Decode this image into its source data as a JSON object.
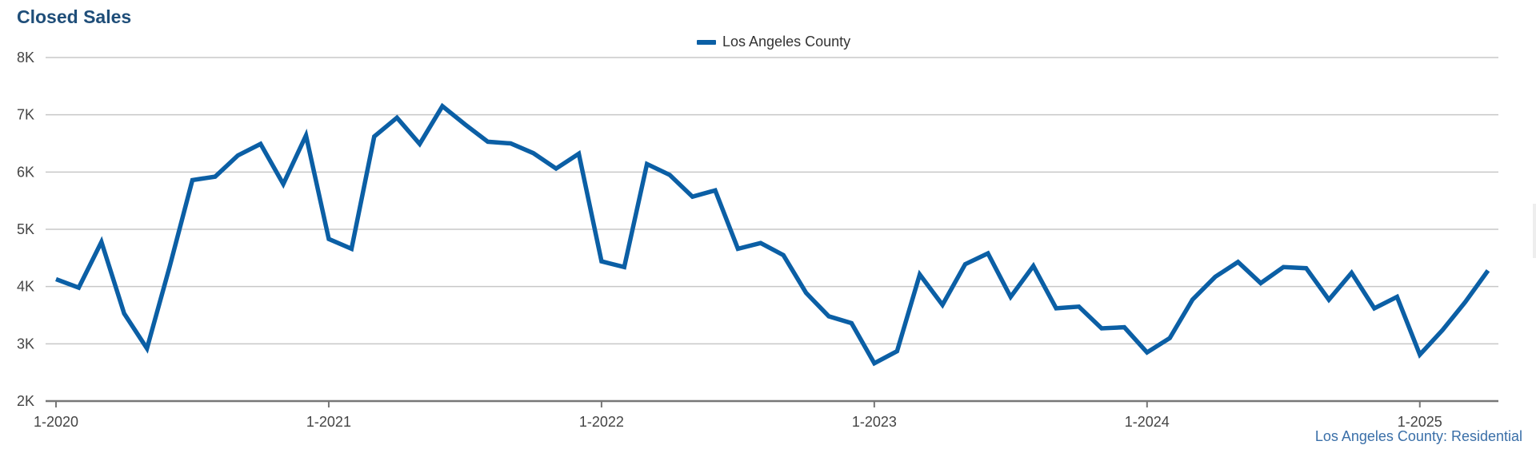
{
  "chart_data": {
    "type": "line",
    "title": "Closed Sales",
    "xlabel": "",
    "ylabel": "",
    "ylim": [
      2000,
      8000
    ],
    "y_ticks": [
      2000,
      3000,
      4000,
      5000,
      6000,
      7000,
      8000
    ],
    "y_tick_labels": [
      "2K",
      "3K",
      "4K",
      "5K",
      "6K",
      "7K",
      "8K"
    ],
    "x_tick_labels": [
      "1-2020",
      "1-2021",
      "1-2022",
      "1-2023",
      "1-2024",
      "1-2025"
    ],
    "grid": true,
    "legend_position": "top-center",
    "source_note": "Los Angeles County: Residential",
    "series": [
      {
        "name": "Los Angeles County",
        "color": "#0b5fa5",
        "x": [
          "1-2020",
          "2-2020",
          "3-2020",
          "4-2020",
          "5-2020",
          "6-2020",
          "7-2020",
          "8-2020",
          "9-2020",
          "10-2020",
          "11-2020",
          "12-2020",
          "1-2021",
          "2-2021",
          "3-2021",
          "4-2021",
          "5-2021",
          "6-2021",
          "7-2021",
          "8-2021",
          "9-2021",
          "10-2021",
          "11-2021",
          "12-2021",
          "1-2022",
          "2-2022",
          "3-2022",
          "4-2022",
          "5-2022",
          "6-2022",
          "7-2022",
          "8-2022",
          "9-2022",
          "10-2022",
          "11-2022",
          "12-2022",
          "1-2023",
          "2-2023",
          "3-2023",
          "4-2023",
          "5-2023",
          "6-2023",
          "7-2023",
          "8-2023",
          "9-2023",
          "10-2023",
          "11-2023",
          "12-2023",
          "1-2024",
          "2-2024",
          "3-2024",
          "4-2024",
          "5-2024",
          "6-2024",
          "7-2024",
          "8-2024",
          "9-2024",
          "10-2024",
          "11-2024",
          "12-2024",
          "1-2025",
          "2-2025",
          "3-2025",
          "4-2025"
        ],
        "values": [
          4130,
          3980,
          4780,
          3530,
          2920,
          4350,
          5860,
          5920,
          6290,
          6490,
          5790,
          6640,
          4830,
          4660,
          6620,
          6950,
          6490,
          7150,
          6830,
          6530,
          6500,
          6330,
          6060,
          6320,
          4440,
          4340,
          6140,
          5950,
          5570,
          5680,
          4660,
          4760,
          4550,
          3890,
          3480,
          3360,
          2660,
          2870,
          4210,
          3680,
          4390,
          4580,
          3820,
          4360,
          3620,
          3650,
          3270,
          3290,
          2850,
          3100,
          3770,
          4170,
          4430,
          4060,
          4340,
          4320,
          3770,
          4240,
          3620,
          3820,
          2810,
          3240,
          3730,
          4280
        ]
      }
    ]
  }
}
